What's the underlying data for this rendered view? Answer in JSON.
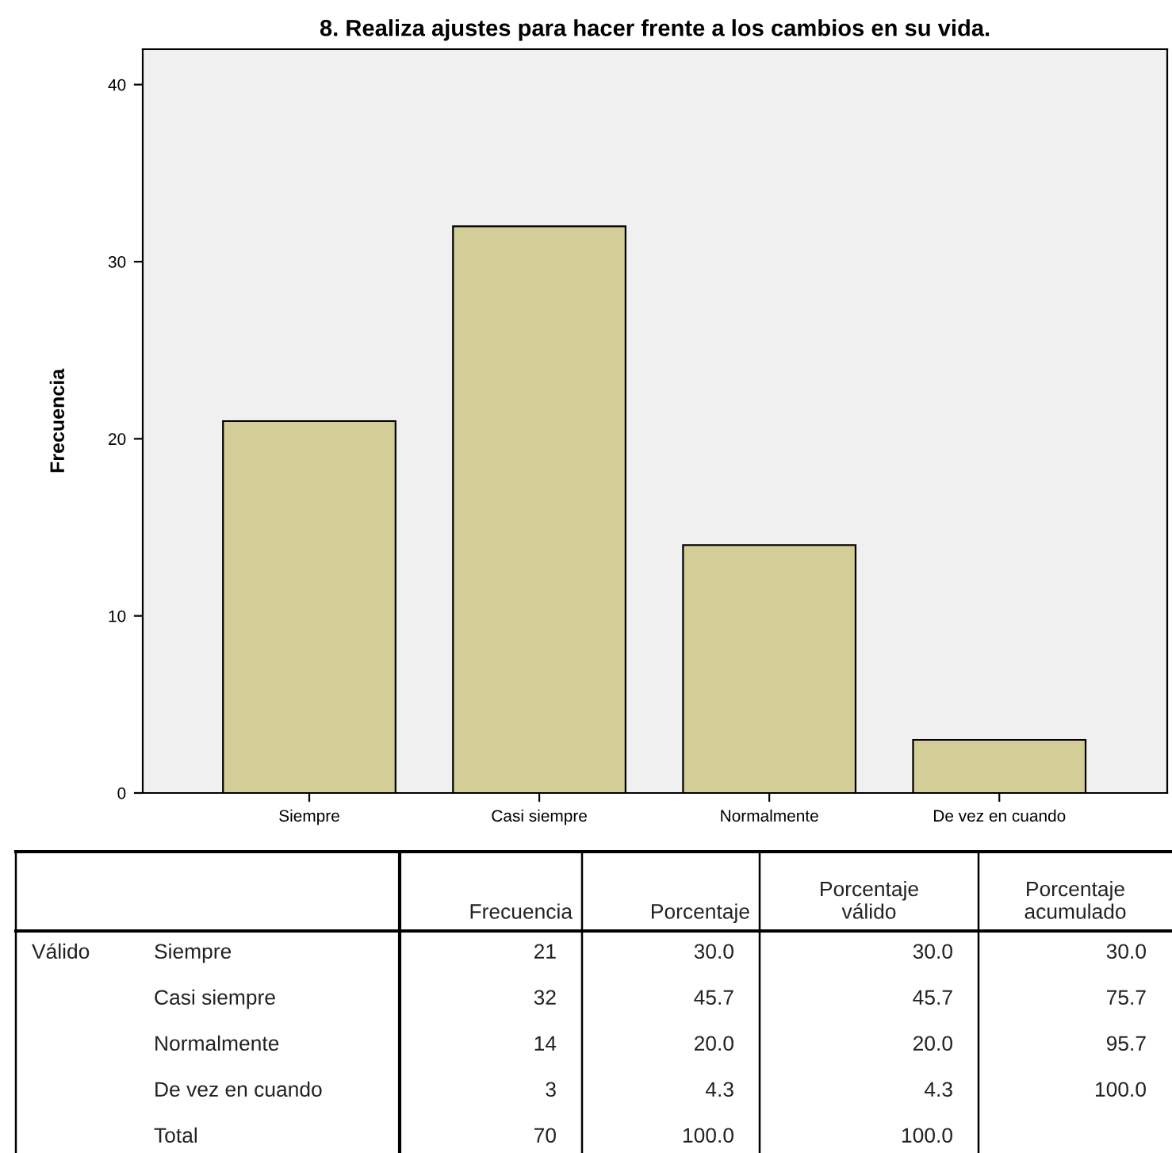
{
  "chart_data": {
    "type": "bar",
    "title": "8. Realiza ajustes para hacer frente a los cambios en su vida.",
    "ylabel": "Frecuencia",
    "categories": [
      "Siempre",
      "Casi siempre",
      "Normalmente",
      "De vez en cuando"
    ],
    "values": [
      21,
      32,
      14,
      3
    ],
    "color": "#d3ce97",
    "ylim": [
      0,
      42
    ],
    "yticks": [
      0,
      10,
      20,
      30,
      40
    ],
    "grid": false,
    "annotations": [
      "Frecuencia",
      "Porcentaje",
      "Porcentaje\nválido",
      "Porcentaje\nacumulado",
      "Válido",
      "Siempre",
      "21",
      "30.0",
      "30.0",
      "30.0",
      "Casi siempre",
      "32",
      "45.7",
      "45.7",
      "75.7",
      "Normalmente",
      "14",
      "20.0",
      "20.0",
      "95.7",
      "De vez en cuando",
      "3",
      "4.3",
      "4.3",
      "100.0",
      "Total",
      "70",
      "100.0",
      "100.0"
    ]
  }
}
